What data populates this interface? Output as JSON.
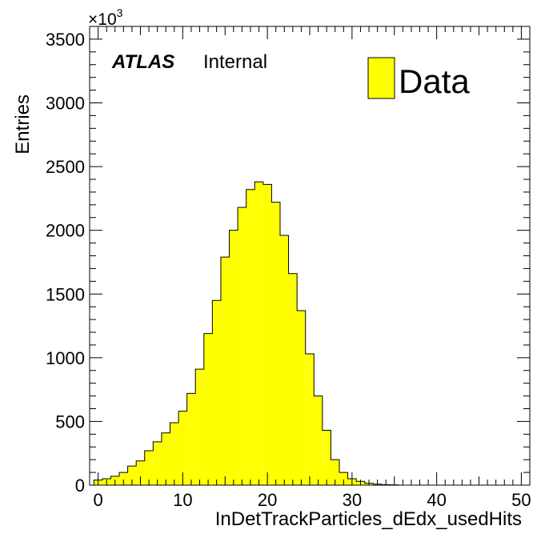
{
  "chart_data": {
    "type": "bar",
    "title": "",
    "xlabel": "InDetTrackParticles_dEdx_usedHits",
    "ylabel": "Entries",
    "y_multiplier": "×10",
    "y_multiplier_exp": "3",
    "xlim": [
      -1,
      51
    ],
    "ylim": [
      0,
      3600
    ],
    "x_ticks": [
      0,
      10,
      20,
      30,
      40,
      50
    ],
    "y_ticks": [
      0,
      500,
      1000,
      1500,
      2000,
      2500,
      3000,
      3500
    ],
    "x_tick_labels": [
      "0",
      "10",
      "20",
      "30",
      "40",
      "50"
    ],
    "y_tick_labels": [
      "0",
      "500",
      "1000",
      "1500",
      "2000",
      "2500",
      "3000",
      "3500"
    ],
    "fill_color": "#ffff00",
    "line_color": "#000000",
    "legend_position": "top-right",
    "series": [
      {
        "name": "Data",
        "bins_low_edges": [
          -0.5,
          0.5,
          1.5,
          2.5,
          3.5,
          4.5,
          5.5,
          6.5,
          7.5,
          8.5,
          9.5,
          10.5,
          11.5,
          12.5,
          13.5,
          14.5,
          15.5,
          16.5,
          17.5,
          18.5,
          19.5,
          20.5,
          21.5,
          22.5,
          23.5,
          24.5,
          25.5,
          26.5,
          27.5,
          28.5,
          29.5,
          30.5,
          31.5,
          32.5,
          33.5,
          34.5
        ],
        "bin_width": 1,
        "values": [
          40,
          50,
          70,
          100,
          150,
          190,
          270,
          340,
          410,
          490,
          580,
          720,
          910,
          1190,
          1450,
          1790,
          2000,
          2180,
          2320,
          2380,
          2360,
          2220,
          1960,
          1660,
          1370,
          1030,
          700,
          430,
          200,
          100,
          50,
          30,
          15,
          8,
          4,
          2
        ]
      }
    ]
  },
  "annotations": {
    "experiment": "ATLAS",
    "status": "Internal"
  },
  "legend": {
    "label": "Data"
  }
}
